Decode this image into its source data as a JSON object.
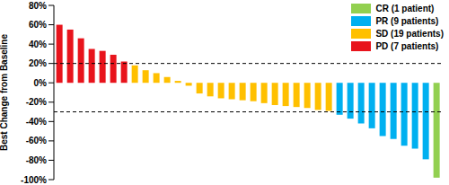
{
  "chart_data": {
    "type": "bar",
    "y_label": "Best Change from Baseline",
    "categories": [
      null,
      null,
      null,
      null,
      null,
      null,
      null,
      null,
      null,
      null,
      null,
      null,
      null,
      null,
      null,
      null,
      null,
      null,
      null,
      null,
      null,
      null,
      null,
      null,
      null,
      null,
      null,
      null,
      null,
      null,
      null,
      null,
      null,
      null,
      null,
      null
    ],
    "series": [
      {
        "name": "CR (1 patient)",
        "color": "#92d050",
        "values": [
          null,
          null,
          null,
          null,
          null,
          null,
          null,
          null,
          null,
          null,
          null,
          null,
          null,
          null,
          null,
          null,
          null,
          null,
          null,
          null,
          null,
          null,
          null,
          null,
          null,
          null,
          null,
          null,
          null,
          null,
          null,
          null,
          null,
          null,
          null,
          -98
        ]
      },
      {
        "name": "PR (9 patients)",
        "color": "#00b0f0",
        "values": [
          null,
          null,
          null,
          null,
          null,
          null,
          null,
          null,
          null,
          null,
          null,
          null,
          null,
          null,
          null,
          null,
          null,
          null,
          null,
          null,
          null,
          null,
          null,
          null,
          null,
          null,
          -33,
          -37,
          -42,
          -47,
          -55,
          -58,
          -65,
          -68,
          -79,
          null
        ]
      },
      {
        "name": "SD (19 patients)",
        "color": "#ffc000",
        "values": [
          null,
          null,
          null,
          null,
          null,
          null,
          null,
          18,
          13,
          10,
          6,
          2,
          -3,
          -11,
          -14,
          -16,
          -17,
          -18,
          -19,
          -21,
          -23,
          -24,
          -25,
          -26,
          -28,
          -29,
          null,
          null,
          null,
          null,
          null,
          null,
          null,
          null,
          null,
          null
        ]
      },
      {
        "name": "PD (7 patients)",
        "color": "#e8141c",
        "values": [
          60,
          55,
          46,
          35,
          33,
          29,
          22,
          null,
          null,
          null,
          null,
          null,
          null,
          null,
          null,
          null,
          null,
          null,
          null,
          null,
          null,
          null,
          null,
          null,
          null,
          null,
          null,
          null,
          null,
          null,
          null,
          null,
          null,
          null,
          null,
          null
        ]
      }
    ],
    "ylim": [
      -100,
      80
    ],
    "yticks": [
      {
        "value": 80,
        "label": "80%"
      },
      {
        "value": 60,
        "label": "60%"
      },
      {
        "value": 40,
        "label": "40%"
      },
      {
        "value": 20,
        "label": "20%"
      },
      {
        "value": 0,
        "label": "0%"
      },
      {
        "value": -20,
        "label": "-20%"
      },
      {
        "value": -40,
        "label": "-40%"
      },
      {
        "value": -60,
        "label": "-60%"
      },
      {
        "value": -80,
        "label": "-80%"
      },
      {
        "value": -100,
        "label": "-100%"
      }
    ],
    "reference_lines": [
      20,
      -30
    ],
    "legend": "upper right",
    "tick_labels": "y"
  }
}
